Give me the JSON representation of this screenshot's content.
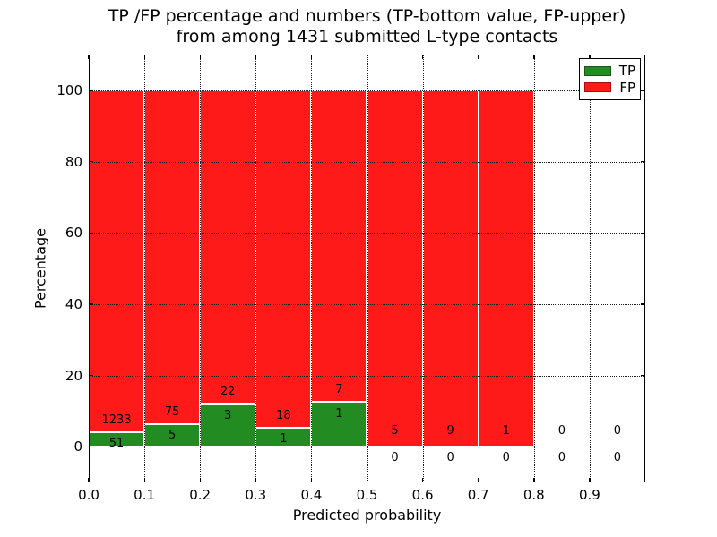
{
  "title": {
    "line1": "TP /FP percentage and numbers (TP-bottom value, FP-upper)",
    "line2": "from among 1431 submitted L-type contacts"
  },
  "axes": {
    "ylabel": "Percentage",
    "xlabel": "Predicted probability",
    "yticks": [
      0,
      20,
      40,
      60,
      80,
      100
    ],
    "xticks": [
      "0.0",
      "0.1",
      "0.2",
      "0.3",
      "0.4",
      "0.5",
      "0.6",
      "0.7",
      "0.8",
      "0.9"
    ],
    "ylim": [
      -10,
      110
    ],
    "xlim": [
      0,
      1
    ]
  },
  "legend": {
    "items": [
      {
        "label": "TP",
        "color": "#228b22"
      },
      {
        "label": "FP",
        "color": "#ff1a1a"
      }
    ]
  },
  "colors": {
    "tp": "#228b22",
    "fp": "#ff1a1a",
    "grid": "#1a1a1a",
    "bar_edge": "#ffffff"
  },
  "chart_data": {
    "type": "bar",
    "stacked": true,
    "title": "TP /FP percentage and numbers (TP-bottom value, FP-upper) from among 1431 submitted L-type contacts",
    "xlabel": "Predicted probability",
    "ylabel": "Percentage",
    "xlim": [
      0,
      1
    ],
    "ylim": [
      -10,
      110
    ],
    "bin_width": 0.1,
    "grid": "dotted",
    "legend_position": "upper right",
    "series": [
      {
        "name": "TP",
        "color": "#228b22"
      },
      {
        "name": "FP",
        "color": "#ff1a1a"
      }
    ],
    "total_contacts": 1431,
    "bins": [
      {
        "x_start": 0.0,
        "tp": 51,
        "fp": 1233,
        "tp_pct": 3.97,
        "total_pct": 100
      },
      {
        "x_start": 0.1,
        "tp": 5,
        "fp": 75,
        "tp_pct": 6.25,
        "total_pct": 100
      },
      {
        "x_start": 0.2,
        "tp": 3,
        "fp": 22,
        "tp_pct": 12.0,
        "total_pct": 100
      },
      {
        "x_start": 0.3,
        "tp": 1,
        "fp": 18,
        "tp_pct": 5.26,
        "total_pct": 100
      },
      {
        "x_start": 0.4,
        "tp": 1,
        "fp": 7,
        "tp_pct": 12.5,
        "total_pct": 100
      },
      {
        "x_start": 0.5,
        "tp": 0,
        "fp": 5,
        "tp_pct": 0,
        "total_pct": 100
      },
      {
        "x_start": 0.6,
        "tp": 0,
        "fp": 9,
        "tp_pct": 0,
        "total_pct": 100
      },
      {
        "x_start": 0.7,
        "tp": 0,
        "fp": 1,
        "tp_pct": 0,
        "total_pct": 100
      },
      {
        "x_start": 0.8,
        "tp": 0,
        "fp": 0,
        "tp_pct": 0,
        "total_pct": 0
      },
      {
        "x_start": 0.9,
        "tp": 0,
        "fp": 0,
        "tp_pct": 0,
        "total_pct": 0
      }
    ]
  }
}
